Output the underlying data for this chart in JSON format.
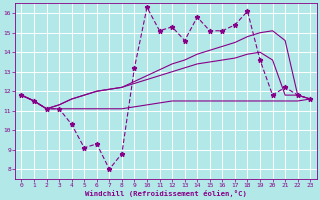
{
  "x": [
    0,
    1,
    2,
    3,
    4,
    5,
    6,
    7,
    8,
    9,
    10,
    11,
    12,
    13,
    14,
    15,
    16,
    17,
    18,
    19,
    20,
    21,
    22,
    23
  ],
  "line_jagged": [
    11.8,
    11.5,
    11.1,
    11.1,
    10.3,
    9.1,
    9.3,
    8.0,
    8.8,
    13.2,
    16.3,
    15.1,
    15.3,
    14.6,
    15.8,
    15.1,
    15.1,
    15.4,
    16.1,
    13.6,
    11.8,
    12.2,
    11.8,
    11.6
  ],
  "line_upper": [
    11.8,
    11.5,
    11.1,
    11.3,
    11.6,
    11.8,
    12.0,
    12.1,
    12.2,
    12.5,
    12.8,
    13.1,
    13.4,
    13.6,
    13.9,
    14.1,
    14.3,
    14.5,
    14.8,
    15.0,
    15.1,
    14.6,
    11.8,
    11.6
  ],
  "line_mid": [
    11.8,
    11.5,
    11.1,
    11.3,
    11.6,
    11.8,
    12.0,
    12.1,
    12.2,
    12.4,
    12.6,
    12.8,
    13.0,
    13.2,
    13.4,
    13.5,
    13.6,
    13.7,
    13.9,
    14.0,
    13.6,
    11.8,
    11.8,
    11.6
  ],
  "line_lower": [
    11.8,
    11.5,
    11.1,
    11.1,
    11.1,
    11.1,
    11.1,
    11.1,
    11.1,
    11.2,
    11.3,
    11.4,
    11.5,
    11.5,
    11.5,
    11.5,
    11.5,
    11.5,
    11.5,
    11.5,
    11.5,
    11.5,
    11.5,
    11.6
  ],
  "background_color": "#b2e8e8",
  "line_color": "#880088",
  "grid_color": "#ffffff",
  "xlabel": "Windchill (Refroidissement éolien,°C)",
  "ylim": [
    7.5,
    16.5
  ],
  "xlim": [
    -0.5,
    23.5
  ],
  "yticks": [
    8,
    9,
    10,
    11,
    12,
    13,
    14,
    15,
    16
  ],
  "xticks": [
    0,
    1,
    2,
    3,
    4,
    5,
    6,
    7,
    8,
    9,
    10,
    11,
    12,
    13,
    14,
    15,
    16,
    17,
    18,
    19,
    20,
    21,
    22,
    23
  ]
}
